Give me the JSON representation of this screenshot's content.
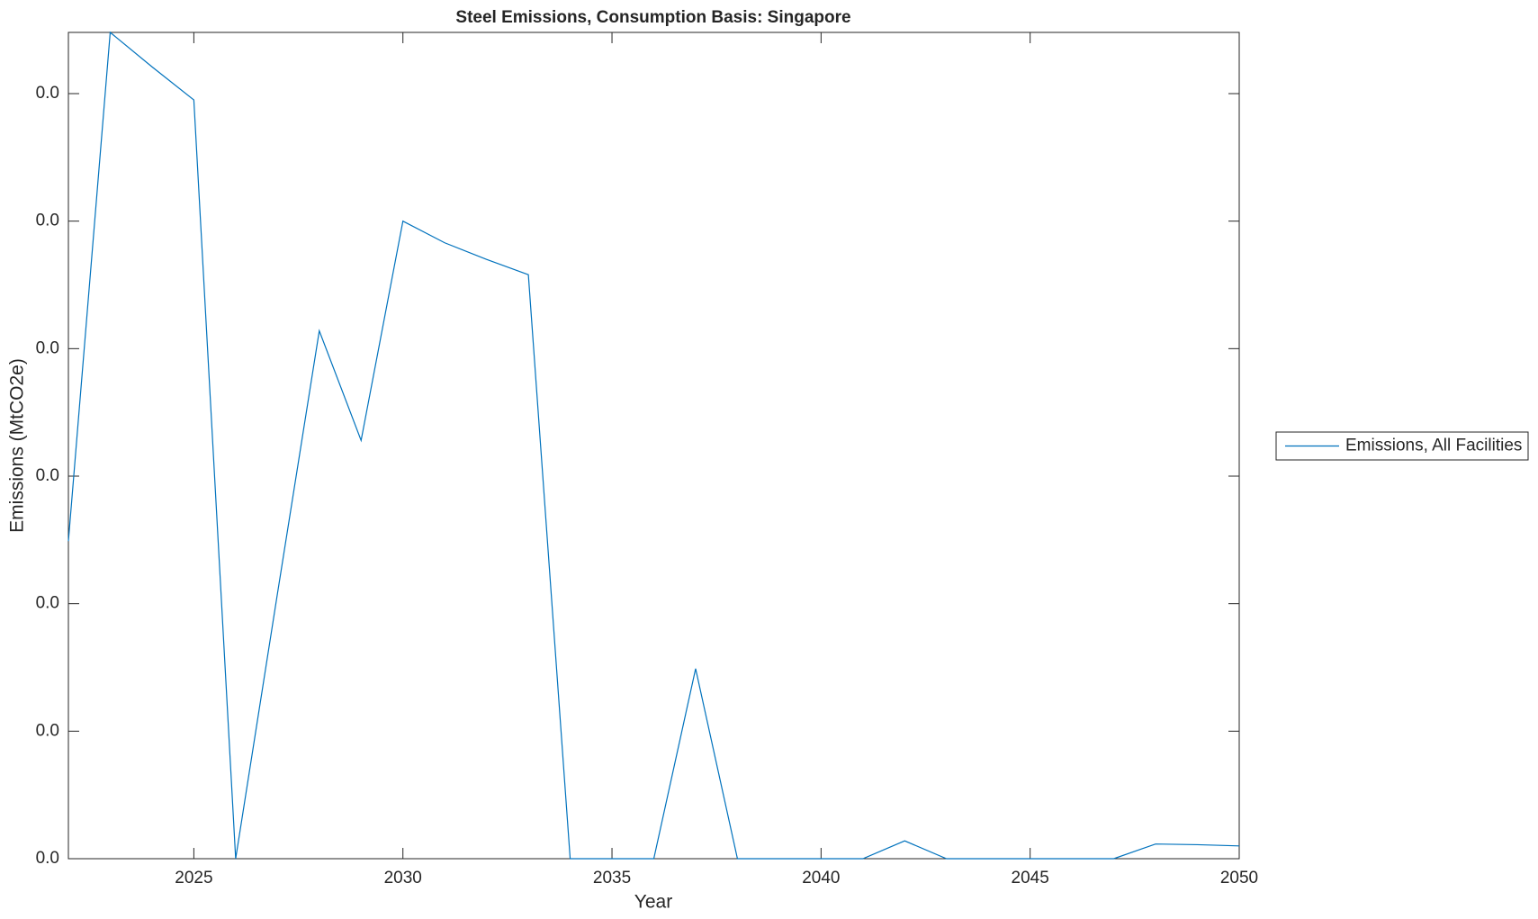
{
  "chart_data": {
    "type": "line",
    "title": "Steel Emissions, Consumption Basis: Singapore",
    "x_label": "Year",
    "y_label": "Emissions (MtCO2e)",
    "x": [
      2022,
      2023,
      2024,
      2025,
      2026,
      2027,
      2028,
      2029,
      2030,
      2031,
      2032,
      2033,
      2034,
      2035,
      2036,
      2037,
      2038,
      2039,
      2040,
      2041,
      2042,
      2043,
      2044,
      2045,
      2046,
      2047,
      2048,
      2049,
      2050
    ],
    "series": [
      {
        "name": "Emissions, All Facilities",
        "color": "#0072bd",
        "values": [
          0.0249,
          0.0648,
          0.0621,
          0.0595,
          0,
          0.0208,
          0.0414,
          0.0328,
          0.05,
          0.0483,
          0.047,
          0.0458,
          0,
          0,
          0,
          0.0149,
          0,
          0,
          0,
          0,
          0.0014,
          0,
          0,
          0,
          0,
          0,
          0.00115,
          0.0011,
          0.001
        ]
      }
    ],
    "xlim": [
      2022,
      2050
    ],
    "xticks": [
      2025,
      2030,
      2035,
      2040,
      2045,
      2050
    ],
    "ylim": [
      0,
      0.0648
    ],
    "yticks": [
      {
        "value": 0,
        "label": "0.0"
      },
      {
        "value": 0.01,
        "label": "0.0"
      },
      {
        "value": 0.02,
        "label": "0.0"
      },
      {
        "value": 0.03,
        "label": "0.0"
      },
      {
        "value": 0.04,
        "label": "0.0"
      },
      {
        "value": 0.05,
        "label": "0.0"
      },
      {
        "value": 0.06,
        "label": "0.0"
      }
    ],
    "legend": "outside-right",
    "grid": false
  }
}
